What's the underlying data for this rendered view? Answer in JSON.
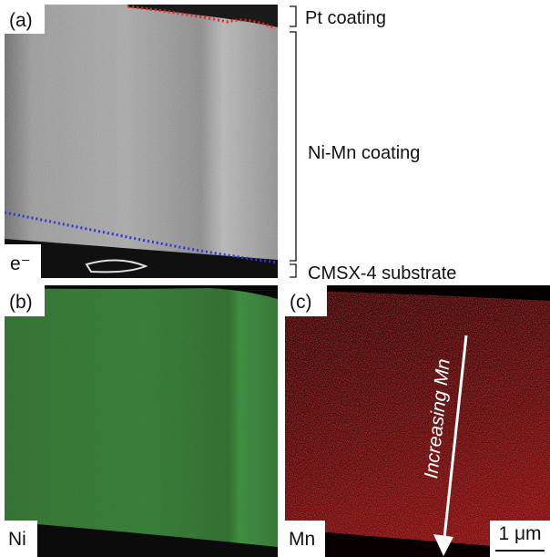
{
  "panels": [
    {
      "label": "(a)",
      "signal": "e⁻"
    },
    {
      "label": "(b)",
      "signal": "Ni"
    },
    {
      "label": "(c)",
      "signal": "Mn"
    }
  ],
  "layers": [
    "Pt coating",
    "Ni-Mn coating",
    "CMSX-4 substrate"
  ],
  "arrow_label": "Increasing Mn",
  "scale_bar": "1 μm"
}
